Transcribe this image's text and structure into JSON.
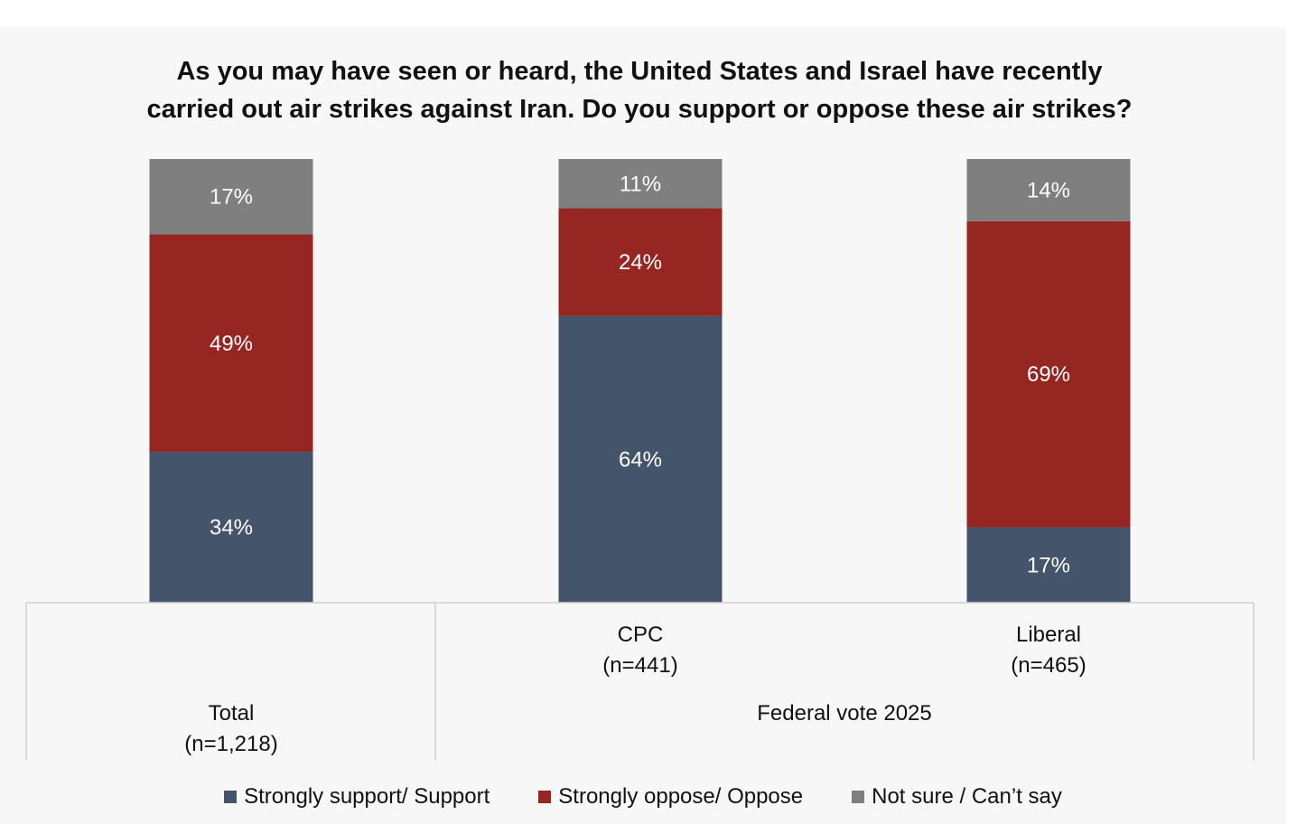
{
  "chart_data": {
    "type": "bar",
    "stacked": true,
    "title_lines": [
      "As you may have seen or heard, the United States and Israel have recently",
      "carried out air strikes against Iran. Do you support or oppose these air strikes?"
    ],
    "categories": [
      {
        "name": "Total",
        "n": "(n=1,218)"
      },
      {
        "name": "CPC",
        "n": "(n=441)"
      },
      {
        "name": "Liberal",
        "n": "(n=465)"
      }
    ],
    "group_label": "Federal vote 2025",
    "series": [
      {
        "name": "Strongly support/ Support",
        "color": "#44546a",
        "values": [
          34,
          64,
          17
        ]
      },
      {
        "name": "Strongly oppose/ Oppose",
        "color": "#962621",
        "values": [
          49,
          24,
          69
        ]
      },
      {
        "name": "Not sure / Can’t say",
        "color": "#7f7f7f",
        "values": [
          17,
          11,
          14
        ]
      }
    ],
    "value_suffix": "%",
    "ylim": [
      0,
      100
    ]
  }
}
